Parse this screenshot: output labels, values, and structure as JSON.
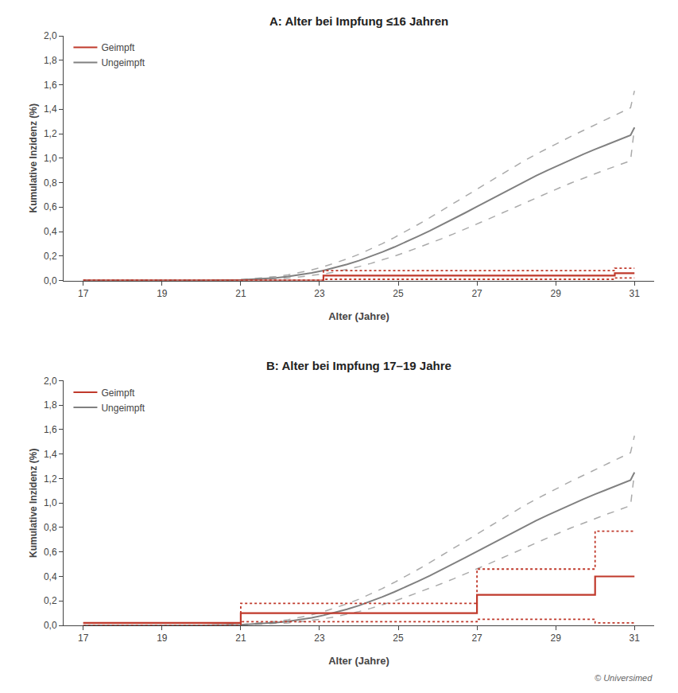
{
  "chart_data": [
    {
      "type": "line",
      "title": "A: Alter bei Impfung ≤16 Jahren",
      "xlabel": "Alter (Jahre)",
      "ylabel": "Kumulative Inzidenz (%)",
      "xlim": [
        16.5,
        31.5
      ],
      "ylim": [
        0,
        2.0
      ],
      "xticks": [
        17,
        19,
        21,
        23,
        25,
        27,
        29,
        31
      ],
      "yticks": [
        {
          "value": 0,
          "label": "0,0"
        },
        {
          "value": 0.2,
          "label": "0,2"
        },
        {
          "value": 0.4,
          "label": "0,4"
        },
        {
          "value": 0.6,
          "label": "0,6"
        },
        {
          "value": 0.8,
          "label": "0,8"
        },
        {
          "value": 1.0,
          "label": "1,0"
        },
        {
          "value": 1.2,
          "label": "1,2"
        },
        {
          "value": 1.4,
          "label": "1,4"
        },
        {
          "value": 1.6,
          "label": "1,6"
        },
        {
          "value": 1.8,
          "label": "1,8"
        },
        {
          "value": 2.0,
          "label": "2,0"
        }
      ],
      "grid": false,
      "legend": "upper left",
      "series": [
        {
          "type": "line",
          "color": "#aaaaaa",
          "line_style": "dashed",
          "x": [
            17,
            20,
            21,
            21.3,
            21.6,
            21.9,
            22.2,
            22.5,
            22.8,
            23.1,
            23.4,
            23.7,
            24.0,
            24.3,
            24.6,
            24.9,
            25.2,
            25.5,
            25.8,
            26.1,
            26.4,
            26.7,
            27.0,
            27.3,
            27.6,
            27.9,
            28.2,
            28.5,
            28.8,
            29.1,
            29.4,
            29.7,
            30.0,
            30.3,
            30.6,
            30.9,
            31.0
          ],
          "values": [
            0.0,
            0.0,
            0.007,
            0.014,
            0.022,
            0.032,
            0.046,
            0.064,
            0.086,
            0.112,
            0.142,
            0.176,
            0.214,
            0.256,
            0.302,
            0.351,
            0.403,
            0.457,
            0.513,
            0.57,
            0.628,
            0.687,
            0.746,
            0.805,
            0.864,
            0.922,
            0.978,
            1.032,
            1.083,
            1.132,
            1.18,
            1.226,
            1.272,
            1.317,
            1.363,
            1.412,
            1.55
          ]
        },
        {
          "type": "line",
          "color": "#aaaaaa",
          "line_style": "dashed",
          "x": [
            17,
            20,
            21,
            21.3,
            21.6,
            21.9,
            22.2,
            22.5,
            22.8,
            23.1,
            23.4,
            23.7,
            24.0,
            24.3,
            24.6,
            24.9,
            25.2,
            25.5,
            25.8,
            26.1,
            26.4,
            26.7,
            27.0,
            27.3,
            27.6,
            27.9,
            28.2,
            28.5,
            28.8,
            29.1,
            29.4,
            29.7,
            30.0,
            30.3,
            30.6,
            30.9,
            31.0
          ],
          "values": [
            0.0,
            0.0,
            0.003,
            0.007,
            0.01,
            0.014,
            0.02,
            0.029,
            0.04,
            0.054,
            0.07,
            0.09,
            0.113,
            0.139,
            0.168,
            0.199,
            0.232,
            0.267,
            0.303,
            0.341,
            0.38,
            0.42,
            0.461,
            0.503,
            0.546,
            0.589,
            0.632,
            0.675,
            0.717,
            0.758,
            0.798,
            0.836,
            0.873,
            0.909,
            0.943,
            0.979,
            1.25
          ]
        },
        {
          "type": "line",
          "name": "Ungeimpft",
          "color": "#808080",
          "line_style": "solid",
          "x": [
            17,
            20,
            21,
            21.3,
            21.6,
            21.9,
            22.2,
            22.5,
            22.8,
            23.1,
            23.4,
            23.7,
            24.0,
            24.3,
            24.6,
            24.9,
            25.2,
            25.5,
            25.8,
            26.1,
            26.4,
            26.7,
            27.0,
            27.3,
            27.6,
            27.9,
            28.2,
            28.5,
            28.8,
            29.1,
            29.4,
            29.7,
            30.0,
            30.3,
            30.6,
            30.9,
            31.0
          ],
          "values": [
            0.0,
            0.0,
            0.005,
            0.01,
            0.015,
            0.022,
            0.032,
            0.045,
            0.062,
            0.082,
            0.105,
            0.132,
            0.162,
            0.196,
            0.233,
            0.273,
            0.315,
            0.36,
            0.406,
            0.454,
            0.503,
            0.553,
            0.604,
            0.655,
            0.706,
            0.757,
            0.807,
            0.856,
            0.902,
            0.947,
            0.99,
            1.032,
            1.072,
            1.11,
            1.148,
            1.187,
            1.25
          ]
        },
        {
          "type": "step",
          "color": "#c0392b",
          "line_style": "dotted",
          "x": [
            17,
            22.9,
            23.1,
            30.5,
            31.0
          ],
          "values": [
            0.0,
            0.0,
            0.08,
            0.1,
            0.1
          ]
        },
        {
          "type": "step",
          "color": "#c0392b",
          "line_style": "dotted",
          "x": [
            17,
            22.9,
            23.1,
            30.5,
            31.0
          ],
          "values": [
            0.0,
            0.0,
            0.01,
            0.02,
            0.02
          ]
        },
        {
          "type": "step",
          "name": "Geimpft",
          "color": "#c0392b",
          "line_style": "solid",
          "x": [
            17,
            22.9,
            23.1,
            30.5,
            31.0
          ],
          "values": [
            0.0,
            0.0,
            0.04,
            0.06,
            0.06
          ]
        }
      ]
    },
    {
      "type": "line",
      "title": "B: Alter bei Impfung 17–19 Jahre",
      "xlabel": "Alter (Jahre)",
      "ylabel": "Kumulative Inzidenz (%)",
      "xlim": [
        16.5,
        31.5
      ],
      "ylim": [
        0,
        2.0
      ],
      "xticks": [
        17,
        19,
        21,
        23,
        25,
        27,
        29,
        31
      ],
      "yticks": [
        {
          "value": 0,
          "label": "0,0"
        },
        {
          "value": 0.2,
          "label": "0,2"
        },
        {
          "value": 0.4,
          "label": "0,4"
        },
        {
          "value": 0.6,
          "label": "0,6"
        },
        {
          "value": 0.8,
          "label": "0,8"
        },
        {
          "value": 1.0,
          "label": "1,0"
        },
        {
          "value": 1.2,
          "label": "1,2"
        },
        {
          "value": 1.4,
          "label": "1,4"
        },
        {
          "value": 1.6,
          "label": "1,6"
        },
        {
          "value": 1.8,
          "label": "1,8"
        },
        {
          "value": 2.0,
          "label": "2,0"
        }
      ],
      "grid": false,
      "legend": "upper left",
      "annotations": [
        "© Universimed"
      ],
      "series": [
        {
          "type": "line",
          "color": "#aaaaaa",
          "line_style": "dashed",
          "x": [
            17,
            20,
            21,
            21.3,
            21.6,
            21.9,
            22.2,
            22.5,
            22.8,
            23.1,
            23.4,
            23.7,
            24.0,
            24.3,
            24.6,
            24.9,
            25.2,
            25.5,
            25.8,
            26.1,
            26.4,
            26.7,
            27.0,
            27.3,
            27.6,
            27.9,
            28.2,
            28.5,
            28.8,
            29.1,
            29.4,
            29.7,
            30.0,
            30.3,
            30.6,
            30.9,
            31.0
          ],
          "values": [
            0.0,
            0.0,
            0.007,
            0.014,
            0.022,
            0.032,
            0.046,
            0.064,
            0.086,
            0.112,
            0.142,
            0.176,
            0.214,
            0.256,
            0.302,
            0.351,
            0.403,
            0.457,
            0.513,
            0.57,
            0.628,
            0.687,
            0.746,
            0.805,
            0.864,
            0.922,
            0.978,
            1.032,
            1.083,
            1.132,
            1.18,
            1.226,
            1.272,
            1.317,
            1.363,
            1.412,
            1.55
          ]
        },
        {
          "type": "line",
          "color": "#aaaaaa",
          "line_style": "dashed",
          "x": [
            17,
            20,
            21,
            21.3,
            21.6,
            21.9,
            22.2,
            22.5,
            22.8,
            23.1,
            23.4,
            23.7,
            24.0,
            24.3,
            24.6,
            24.9,
            25.2,
            25.5,
            25.8,
            26.1,
            26.4,
            26.7,
            27.0,
            27.3,
            27.6,
            27.9,
            28.2,
            28.5,
            28.8,
            29.1,
            29.4,
            29.7,
            30.0,
            30.3,
            30.6,
            30.9,
            31.0
          ],
          "values": [
            0.0,
            0.0,
            0.003,
            0.007,
            0.01,
            0.014,
            0.02,
            0.029,
            0.04,
            0.054,
            0.07,
            0.09,
            0.113,
            0.139,
            0.168,
            0.199,
            0.232,
            0.267,
            0.303,
            0.341,
            0.38,
            0.42,
            0.461,
            0.503,
            0.546,
            0.589,
            0.632,
            0.675,
            0.717,
            0.758,
            0.798,
            0.836,
            0.873,
            0.909,
            0.943,
            0.979,
            1.25
          ]
        },
        {
          "type": "line",
          "name": "Ungeimpft",
          "color": "#808080",
          "line_style": "solid",
          "x": [
            17,
            20,
            21,
            21.3,
            21.6,
            21.9,
            22.2,
            22.5,
            22.8,
            23.1,
            23.4,
            23.7,
            24.0,
            24.3,
            24.6,
            24.9,
            25.2,
            25.5,
            25.8,
            26.1,
            26.4,
            26.7,
            27.0,
            27.3,
            27.6,
            27.9,
            28.2,
            28.5,
            28.8,
            29.1,
            29.4,
            29.7,
            30.0,
            30.3,
            30.6,
            30.9,
            31.0
          ],
          "values": [
            0.0,
            0.0,
            0.005,
            0.01,
            0.015,
            0.022,
            0.032,
            0.045,
            0.062,
            0.082,
            0.105,
            0.132,
            0.162,
            0.196,
            0.233,
            0.273,
            0.315,
            0.36,
            0.406,
            0.454,
            0.503,
            0.553,
            0.604,
            0.655,
            0.706,
            0.757,
            0.807,
            0.856,
            0.902,
            0.947,
            0.99,
            1.032,
            1.072,
            1.11,
            1.148,
            1.187,
            1.25
          ]
        },
        {
          "type": "step",
          "color": "#c0392b",
          "line_style": "dotted",
          "x": [
            17,
            20.9,
            21.0,
            26.8,
            27.0,
            29.8,
            30.0,
            31.0
          ],
          "values": [
            0.02,
            0.02,
            0.18,
            0.18,
            0.46,
            0.46,
            0.77,
            0.77
          ]
        },
        {
          "type": "step",
          "color": "#c0392b",
          "line_style": "dotted",
          "x": [
            17,
            20.9,
            21.0,
            26.8,
            27.0,
            29.8,
            30.0,
            31.0
          ],
          "values": [
            0.0,
            0.0,
            0.03,
            0.03,
            0.05,
            0.05,
            0.02,
            0.02
          ]
        },
        {
          "type": "step",
          "name": "Geimpft",
          "color": "#c0392b",
          "line_style": "solid",
          "x": [
            17,
            20.9,
            21.0,
            26.8,
            27.0,
            29.8,
            30.0,
            31.0
          ],
          "values": [
            0.02,
            0.02,
            0.1,
            0.1,
            0.25,
            0.25,
            0.4,
            0.4
          ]
        }
      ]
    }
  ]
}
